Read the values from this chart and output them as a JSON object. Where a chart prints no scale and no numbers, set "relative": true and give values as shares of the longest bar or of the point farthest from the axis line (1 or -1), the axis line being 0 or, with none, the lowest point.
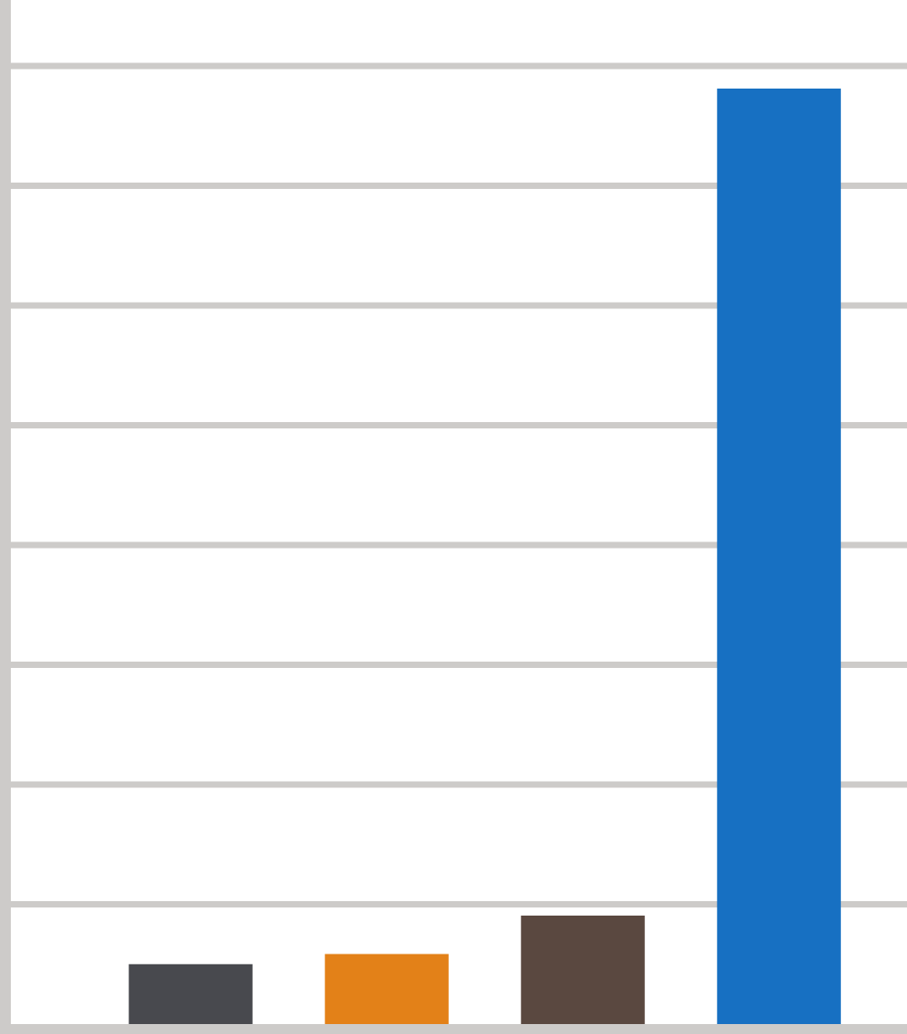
{
  "chart_data": {
    "type": "bar",
    "relative": true,
    "categories": [
      null,
      null,
      null,
      null
    ],
    "values": [
      0.064,
      0.075,
      0.116,
      1
    ],
    "colors": [
      "#48494e",
      "#e38118",
      "#5a4840",
      "#1770c2"
    ],
    "grid": "y"
  }
}
